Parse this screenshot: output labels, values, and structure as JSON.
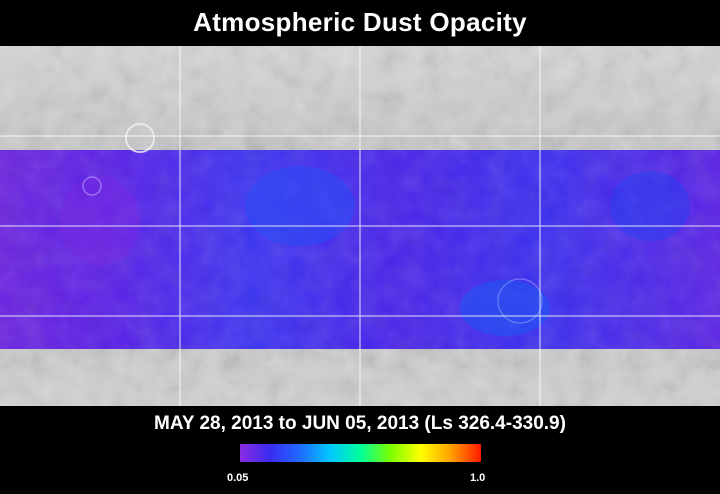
{
  "title": "Atmospheric Dust Opacity",
  "date_range": "MAY 28, 2013 to JUN 05, 2013 (Ls 326.4-330.9)",
  "colorbar": {
    "min_label": "0.05",
    "max_label": "1.0",
    "min_value": 0.05,
    "max_value": 1.0,
    "colors": [
      "#8a2be2",
      "#3a2cf0",
      "#1e6cff",
      "#00c8ff",
      "#00ff9c",
      "#7cff00",
      "#ffff00",
      "#ffa000",
      "#ff1a00"
    ]
  },
  "map": {
    "relief_color": "#c9c9c9",
    "grid_color": "#ffffff",
    "dust_band_colors": [
      "#5a20e6",
      "#4a2bf0",
      "#3540f2"
    ]
  }
}
